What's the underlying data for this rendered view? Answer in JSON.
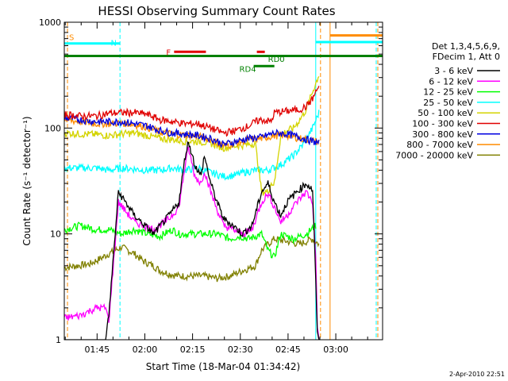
{
  "chart_data": {
    "type": "line",
    "title": "HESSI Observing Summary Count Rates",
    "xlabel": "Start Time (18-Mar-04 01:34:42)",
    "ylabel": "Count Rate (s⁻¹ detector⁻¹)",
    "footer": "2-Apr-2010 22:51",
    "x_axis": {
      "min_minutes": 0,
      "max_minutes": 100,
      "ticks": [
        {
          "label": "01:45",
          "t": 10.3
        },
        {
          "label": "02:00",
          "t": 25.3
        },
        {
          "label": "02:15",
          "t": 40.3
        },
        {
          "label": "02:30",
          "t": 55.3
        },
        {
          "label": "02:45",
          "t": 70.3
        },
        {
          "label": "03:00",
          "t": 85.3
        }
      ]
    },
    "y_axis": {
      "scale": "log",
      "ylim": [
        1,
        1000
      ],
      "tick_labels": [
        "1",
        "10",
        "100",
        "1000"
      ]
    },
    "legend": {
      "placement": "right",
      "header": [
        "Det 1,3,4,5,6,9,",
        "FDecim 1, Att 0"
      ],
      "entries": [
        {
          "label": "3 - 6 keV",
          "color": "#000000"
        },
        {
          "label": "6 - 12 keV",
          "color": "#ff00ff"
        },
        {
          "label": "12 - 25 keV",
          "color": "#00ff00"
        },
        {
          "label": "25 - 50 keV",
          "color": "#00ffff"
        },
        {
          "label": "50 - 100 keV",
          "color": "#d4d400"
        },
        {
          "label": "100 - 300 keV",
          "color": "#e00000"
        },
        {
          "label": "300 - 800 keV",
          "color": "#0000e0"
        },
        {
          "label": "800 - 7000 keV",
          "color": "#ff8c00"
        },
        {
          "label": "7000 - 20000 keV",
          "color": "#808000"
        }
      ]
    },
    "series": [
      {
        "name": "3 - 6 keV",
        "color": "#000000",
        "points": [
          [
            0,
            1
          ],
          [
            13,
            1
          ],
          [
            14,
            1.7
          ],
          [
            17,
            25
          ],
          [
            22,
            15
          ],
          [
            28,
            10
          ],
          [
            33,
            15
          ],
          [
            36,
            20
          ],
          [
            38,
            55
          ],
          [
            39,
            75
          ],
          [
            41,
            45
          ],
          [
            43,
            35
          ],
          [
            44,
            55
          ],
          [
            46,
            30
          ],
          [
            48,
            20
          ],
          [
            50,
            14
          ],
          [
            53,
            12
          ],
          [
            56,
            10
          ],
          [
            59,
            12
          ],
          [
            62,
            25
          ],
          [
            64,
            30
          ],
          [
            66,
            20
          ],
          [
            68,
            15
          ],
          [
            70,
            20
          ],
          [
            73,
            25
          ],
          [
            76,
            30
          ],
          [
            78,
            26
          ],
          [
            78.5,
            10
          ],
          [
            79.5,
            1.2
          ],
          [
            80,
            1
          ]
        ]
      },
      {
        "name": "6 - 12 keV",
        "color": "#ff00ff",
        "points": [
          [
            0,
            1.6
          ],
          [
            5,
            1.7
          ],
          [
            10,
            2
          ],
          [
            13,
            2
          ],
          [
            14,
            1.5
          ],
          [
            17,
            20
          ],
          [
            22,
            13
          ],
          [
            28,
            11
          ],
          [
            33,
            14
          ],
          [
            36,
            18
          ],
          [
            38,
            45
          ],
          [
            39,
            65
          ],
          [
            41,
            35
          ],
          [
            43,
            30
          ],
          [
            44,
            40
          ],
          [
            46,
            25
          ],
          [
            48,
            17
          ],
          [
            50,
            12
          ],
          [
            53,
            11
          ],
          [
            56,
            10
          ],
          [
            59,
            11
          ],
          [
            62,
            20
          ],
          [
            64,
            24
          ],
          [
            66,
            18
          ],
          [
            68,
            13
          ],
          [
            70,
            15
          ],
          [
            73,
            20
          ],
          [
            76,
            25
          ],
          [
            78,
            20
          ],
          [
            79,
            6
          ],
          [
            79.5,
            1.4
          ],
          [
            80,
            1
          ]
        ]
      },
      {
        "name": "12 - 25 keV",
        "color": "#00ff00",
        "points": [
          [
            0,
            11
          ],
          [
            5,
            12
          ],
          [
            10,
            11
          ],
          [
            14,
            11
          ],
          [
            18,
            10
          ],
          [
            22,
            11
          ],
          [
            26,
            10
          ],
          [
            30,
            9.5
          ],
          [
            34,
            11
          ],
          [
            36,
            10
          ],
          [
            40,
            10
          ],
          [
            44,
            10
          ],
          [
            48,
            10
          ],
          [
            52,
            9
          ],
          [
            55,
            9.5
          ],
          [
            58,
            9
          ],
          [
            62,
            10
          ],
          [
            64,
            7
          ],
          [
            66,
            6
          ],
          [
            68,
            10
          ],
          [
            72,
            9
          ],
          [
            76,
            10
          ],
          [
            79,
            12
          ]
        ]
      },
      {
        "name": "25 - 50 keV",
        "color": "#00ffff",
        "points": [
          [
            0,
            42
          ],
          [
            5,
            42
          ],
          [
            10,
            42
          ],
          [
            14,
            40
          ],
          [
            18,
            42
          ],
          [
            22,
            41
          ],
          [
            26,
            40
          ],
          [
            30,
            40
          ],
          [
            34,
            42
          ],
          [
            38,
            40
          ],
          [
            42,
            42
          ],
          [
            46,
            38
          ],
          [
            50,
            35
          ],
          [
            54,
            36
          ],
          [
            56,
            38
          ],
          [
            60,
            40
          ],
          [
            64,
            40
          ],
          [
            68,
            45
          ],
          [
            72,
            55
          ],
          [
            75,
            70
          ],
          [
            78,
            100
          ],
          [
            80,
            140
          ]
        ]
      },
      {
        "name": "50 - 100 keV",
        "color": "#d4d400",
        "points": [
          [
            0,
            90
          ],
          [
            5,
            88
          ],
          [
            10,
            87
          ],
          [
            14,
            85
          ],
          [
            18,
            88
          ],
          [
            22,
            90
          ],
          [
            26,
            85
          ],
          [
            30,
            80
          ],
          [
            34,
            78
          ],
          [
            38,
            75
          ],
          [
            42,
            75
          ],
          [
            46,
            72
          ],
          [
            50,
            65
          ],
          [
            54,
            68
          ],
          [
            58,
            70
          ],
          [
            60,
            72
          ],
          [
            62,
            25
          ],
          [
            64,
            25
          ],
          [
            65,
            30
          ],
          [
            66,
            30
          ],
          [
            68,
            85
          ],
          [
            70,
            95
          ],
          [
            72,
            100
          ],
          [
            74,
            120
          ],
          [
            76,
            150
          ],
          [
            78,
            220
          ],
          [
            80,
            320
          ]
        ]
      },
      {
        "name": "100 - 300 keV",
        "color": "#e00000",
        "points": [
          [
            0,
            135
          ],
          [
            5,
            130
          ],
          [
            10,
            130
          ],
          [
            14,
            138
          ],
          [
            18,
            140
          ],
          [
            22,
            140
          ],
          [
            26,
            135
          ],
          [
            30,
            120
          ],
          [
            34,
            115
          ],
          [
            38,
            110
          ],
          [
            42,
            110
          ],
          [
            46,
            100
          ],
          [
            50,
            90
          ],
          [
            54,
            95
          ],
          [
            58,
            105
          ],
          [
            60,
            115
          ],
          [
            62,
            120
          ],
          [
            65,
            115
          ],
          [
            66,
            140
          ],
          [
            70,
            145
          ],
          [
            74,
            150
          ],
          [
            76,
            160
          ],
          [
            78,
            190
          ],
          [
            80,
            250
          ]
        ]
      },
      {
        "name": "300 - 800 keV",
        "color": "#0000e0",
        "points": [
          [
            0,
            125
          ],
          [
            5,
            120
          ],
          [
            10,
            115
          ],
          [
            14,
            115
          ],
          [
            18,
            115
          ],
          [
            22,
            110
          ],
          [
            26,
            105
          ],
          [
            30,
            95
          ],
          [
            34,
            90
          ],
          [
            38,
            88
          ],
          [
            42,
            85
          ],
          [
            46,
            80
          ],
          [
            50,
            70
          ],
          [
            54,
            75
          ],
          [
            58,
            80
          ],
          [
            62,
            82
          ],
          [
            66,
            90
          ],
          [
            70,
            88
          ],
          [
            74,
            82
          ],
          [
            78,
            75
          ],
          [
            80,
            72
          ]
        ]
      },
      {
        "name": "800 - 7000 keV",
        "color": "#ff8c00",
        "points": [
          [
            0,
            120
          ],
          [
            5,
            115
          ],
          [
            10,
            110
          ],
          [
            14,
            110
          ],
          [
            18,
            112
          ],
          [
            22,
            108
          ],
          [
            26,
            102
          ],
          [
            30,
            92
          ],
          [
            34,
            88
          ],
          [
            38,
            86
          ],
          [
            42,
            84
          ],
          [
            46,
            78
          ],
          [
            50,
            68
          ],
          [
            54,
            72
          ],
          [
            58,
            78
          ],
          [
            62,
            80
          ],
          [
            66,
            85
          ],
          [
            70,
            85
          ],
          [
            74,
            80
          ],
          [
            78,
            76
          ],
          [
            80,
            74
          ]
        ]
      },
      {
        "name": "7000 - 20000 keV",
        "color": "#808000",
        "points": [
          [
            0,
            4.8
          ],
          [
            4,
            5
          ],
          [
            8,
            5.2
          ],
          [
            12,
            6
          ],
          [
            14,
            6.5
          ],
          [
            16,
            7
          ],
          [
            18,
            7.5
          ],
          [
            20,
            7
          ],
          [
            22,
            6.5
          ],
          [
            25,
            5.5
          ],
          [
            28,
            5
          ],
          [
            30,
            4.5
          ],
          [
            33,
            4.2
          ],
          [
            36,
            4
          ],
          [
            40,
            4
          ],
          [
            44,
            4
          ],
          [
            48,
            3.8
          ],
          [
            52,
            4
          ],
          [
            56,
            4.5
          ],
          [
            60,
            5
          ],
          [
            62,
            7
          ],
          [
            64,
            8
          ],
          [
            66,
            9
          ],
          [
            70,
            8.5
          ],
          [
            74,
            8
          ],
          [
            78,
            9
          ],
          [
            80,
            8
          ]
        ]
      }
    ],
    "annotations": {
      "labels": [
        {
          "text": "S",
          "color": "#ff8c00",
          "t": 1.5,
          "y": 680
        },
        {
          "text": "N",
          "color": "#00ffff",
          "t": 14.6,
          "y": 600
        },
        {
          "text": "F",
          "color": "#e00000",
          "t": 32,
          "y": 490
        },
        {
          "text": "RD0",
          "color": "#008000",
          "t": 64,
          "y": 420
        },
        {
          "text": "RD4",
          "color": "#008000",
          "t": 55,
          "y": 340
        }
      ],
      "bars": [
        {
          "color": "#00ffff",
          "t1": 0,
          "t2": 17.5,
          "y": 630
        },
        {
          "color": "#e00000",
          "t1": 34.5,
          "t2": 44.5,
          "y": 525
        },
        {
          "color": "#e00000",
          "t1": 60.5,
          "t2": 63,
          "y": 525
        },
        {
          "color": "#008000",
          "t1": 0,
          "t2": 100,
          "y": 480
        },
        {
          "color": "#008000",
          "t1": 59.5,
          "t2": 66,
          "y": 385
        },
        {
          "color": "#00ffff",
          "t1": 79,
          "t2": 100,
          "y": 650
        },
        {
          "color": "#ff8c00",
          "t1": 83.5,
          "t2": 100,
          "y": 750
        }
      ],
      "vlines": [
        {
          "color": "#00ffff",
          "t": 0,
          "style": "solid"
        },
        {
          "color": "#ff8c00",
          "t": 1,
          "style": "dashed"
        },
        {
          "color": "#00ffff",
          "t": 17.5,
          "style": "dashed"
        },
        {
          "color": "#00ffff",
          "t": 79,
          "style": "solid"
        },
        {
          "color": "#ff8c00",
          "t": 80.5,
          "style": "dashed"
        },
        {
          "color": "#ff8c00",
          "t": 83.5,
          "style": "solid"
        },
        {
          "color": "#00ffff",
          "t": 98,
          "style": "dashed"
        },
        {
          "color": "#ff8c00",
          "t": 98.5,
          "style": "dashed"
        }
      ]
    }
  }
}
